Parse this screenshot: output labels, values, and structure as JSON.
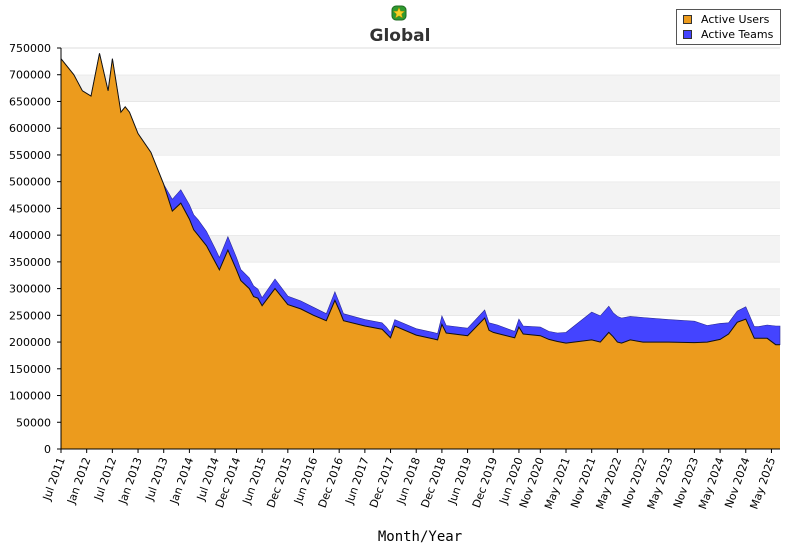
{
  "chart_data": {
    "type": "area",
    "title": "Global",
    "xlabel": "Month/Year",
    "ylabel": "",
    "ylim": [
      0,
      750000
    ],
    "yticks": [
      0,
      50000,
      100000,
      150000,
      200000,
      250000,
      300000,
      350000,
      400000,
      450000,
      500000,
      550000,
      600000,
      650000,
      700000,
      750000
    ],
    "x_tick_labels": [
      "Jul 2011",
      "Jan 2012",
      "Jul 2012",
      "Jan 2013",
      "Jul 2013",
      "Jan 2014",
      "Jul 2014",
      "Dec 2014",
      "Jun 2015",
      "Dec 2015",
      "Jun 2016",
      "Dec 2016",
      "Jun 2017",
      "Dec 2017",
      "Jun 2018",
      "Dec 2018",
      "Jun 2019",
      "Dec 2019",
      "Jun 2020",
      "Nov 2020",
      "May 2021",
      "Nov 2021",
      "May 2022",
      "Nov 2022",
      "May 2023",
      "Nov 2023",
      "May 2024",
      "Nov 2024",
      "May 2025"
    ],
    "stacked": true,
    "legend_position": "top-right",
    "grid": "alternating horizontal bands",
    "x": [
      "Jul 2011",
      "Oct 2011",
      "Dec 2011",
      "Feb 2012",
      "Apr 2012",
      "Jun 2012",
      "Jul 2012",
      "Sep 2012",
      "Oct 2012",
      "Nov 2012",
      "Jan 2013",
      "Apr 2013",
      "Jul 2013",
      "Sep 2013",
      "Nov 2013",
      "Jan 2014",
      "Feb 2014",
      "Mar 2014",
      "May 2014",
      "Jul 2014",
      "Aug 2014",
      "Oct 2014",
      "Dec 2014",
      "Jan 2015",
      "Mar 2015",
      "Apr 2015",
      "May 2015",
      "Jun 2015",
      "Sep 2015",
      "Dec 2015",
      "Mar 2016",
      "Jun 2016",
      "Sep 2016",
      "Nov 2016",
      "Dec 2016",
      "Jan 2017",
      "Jun 2017",
      "Oct 2017",
      "Nov 2017",
      "Dec 2017",
      "Jan 2018",
      "Jun 2018",
      "Oct 2018",
      "Nov 2018",
      "Dec 2018",
      "Jan 2019",
      "Jun 2019",
      "Oct 2019",
      "Nov 2019",
      "Dec 2019",
      "Jan 2020",
      "May 2020",
      "Jun 2020",
      "Jul 2020",
      "Nov 2020",
      "Jan 2021",
      "Mar 2021",
      "May 2021",
      "Nov 2021",
      "Jan 2022",
      "Mar 2022",
      "Apr 2022",
      "May 2022",
      "Jun 2022",
      "Aug 2022",
      "Nov 2022",
      "May 2023",
      "Nov 2023",
      "Feb 2024",
      "May 2024",
      "Jul 2024",
      "Sep 2024",
      "Nov 2024",
      "Jan 2025",
      "Feb 2025",
      "Apr 2025",
      "Jun 2025",
      "Jul 2025"
    ],
    "series": [
      {
        "name": "Active Users",
        "color": "#ec9b1d",
        "values": [
          730000,
          700000,
          670000,
          660000,
          740000,
          670000,
          730000,
          630000,
          640000,
          630000,
          590000,
          555000,
          495000,
          445000,
          460000,
          430000,
          410000,
          400000,
          380000,
          350000,
          335000,
          372000,
          335000,
          315000,
          300000,
          285000,
          282000,
          268000,
          300000,
          270000,
          262000,
          250000,
          240000,
          278000,
          260000,
          240000,
          230000,
          224000,
          216000,
          208000,
          230000,
          213000,
          206000,
          204000,
          233000,
          217000,
          212000,
          245000,
          222000,
          218000,
          216000,
          208000,
          228000,
          215000,
          212000,
          205000,
          201000,
          198000,
          204000,
          200000,
          218000,
          210000,
          200000,
          198000,
          204000,
          200000,
          200000,
          199000,
          200000,
          205000,
          215000,
          237000,
          243000,
          207000,
          207000,
          207000,
          195000,
          195000
        ]
      },
      {
        "name": "Active Teams",
        "color": "#4444ff",
        "values": [
          0,
          0,
          0,
          0,
          0,
          0,
          0,
          0,
          0,
          0,
          0,
          0,
          0,
          22000,
          25000,
          27000,
          28000,
          29000,
          27000,
          25000,
          23000,
          25000,
          23000,
          21000,
          20000,
          20000,
          17000,
          15000,
          18000,
          16000,
          15000,
          15000,
          13000,
          16000,
          14000,
          13000,
          12000,
          12000,
          12000,
          10000,
          12000,
          12000,
          12000,
          12000,
          16000,
          14000,
          14000,
          15000,
          14000,
          16000,
          16000,
          12000,
          15000,
          15000,
          16000,
          15000,
          16000,
          20000,
          52000,
          49000,
          49000,
          45000,
          48000,
          47000,
          44000,
          46000,
          42000,
          40000,
          31000,
          30000,
          21000,
          21000,
          23000,
          22000,
          22000,
          25000,
          35000,
          35000
        ]
      }
    ]
  }
}
